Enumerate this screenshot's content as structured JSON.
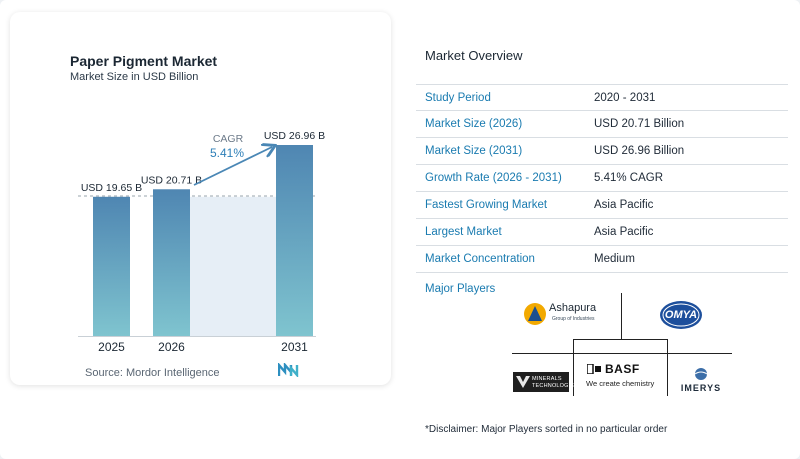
{
  "chart_data": {
    "type": "bar",
    "title": "Paper Pigment Market",
    "subtitle": "Market Size in USD Billion",
    "categories": [
      "2025",
      "2026",
      "2031"
    ],
    "values": [
      19.65,
      20.71,
      26.96
    ],
    "data_labels": [
      "USD 19.65 B",
      "USD 20.71 B",
      "USD 26.96 B"
    ],
    "cagr_label": "CAGR",
    "cagr_value": "5.41%",
    "ylim": [
      0,
      26.96
    ],
    "bar_color_top": "#4f86b2",
    "bar_color_bottom": "#7fc4cf",
    "gap_fill": "#e6eef6"
  },
  "source": "Source:  Mordor Intelligence",
  "overview": {
    "title": "Market Overview",
    "rows": [
      {
        "label": "Study Period",
        "value": "2020 - 2031"
      },
      {
        "label": "Market Size (2026)",
        "value": "USD 20.71 Billion"
      },
      {
        "label": "Market Size (2031)",
        "value": "USD 26.96 Billion"
      },
      {
        "label": "Growth Rate (2026 - 2031)",
        "value": "5.41% CAGR"
      },
      {
        "label": "Fastest Growing Market",
        "value": "Asia Pacific"
      },
      {
        "label": "Largest Market",
        "value": "Asia Pacific"
      },
      {
        "label": "Market Concentration",
        "value": "Medium"
      }
    ]
  },
  "players": {
    "title": "Major Players",
    "ashapura": {
      "name": "Ashapura",
      "tag": "Group of Industries"
    },
    "omya": {
      "name": "OMYA"
    },
    "minerals": {
      "name": "MINERALS",
      "sub": "TECHNOLOGIES"
    },
    "basf": {
      "name": "BASF",
      "tag": "We create chemistry"
    },
    "imerys": {
      "name": "IMERYS"
    }
  },
  "disclaimer": "*Disclaimer: Major Players sorted in no particular order"
}
